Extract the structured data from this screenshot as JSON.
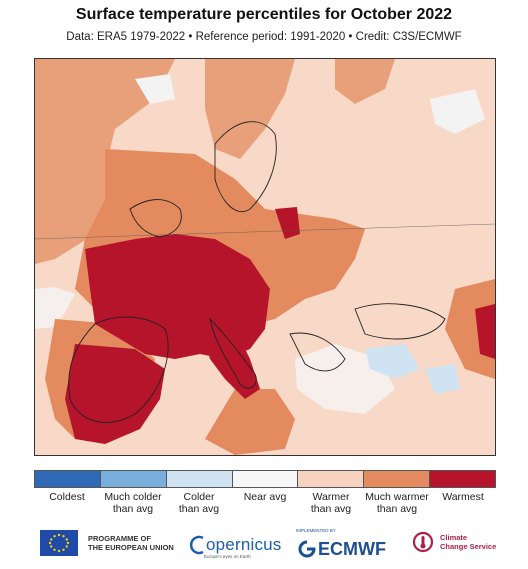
{
  "header": {
    "title": "Surface temperature percentiles for October 2022",
    "subtitle": "Data: ERA5 1979-2022 • Reference period: 1991-2020 • Credit: C3S/ECMWF"
  },
  "colors": {
    "coldest": "#2f6ab6",
    "much_colder": "#7aaedc",
    "colder": "#cfe3f2",
    "near_avg": "#f7f7f7",
    "warmer": "#f7d3bf",
    "much_warmer": "#e38b5f",
    "warmest": "#b5142b"
  },
  "legend": {
    "items": [
      {
        "label": "Coldest",
        "color": "#2f6ab6"
      },
      {
        "label": "Much colder\nthan avg",
        "color": "#7aaedc"
      },
      {
        "label": "Colder\nthan avg",
        "color": "#cfe3f2"
      },
      {
        "label": "Near avg",
        "color": "#f7f7f7"
      },
      {
        "label": "Warmer\nthan avg",
        "color": "#f7d3bf"
      },
      {
        "label": "Much warmer\nthan avg",
        "color": "#e38b5f"
      },
      {
        "label": "Warmest",
        "color": "#b5142b"
      }
    ]
  },
  "logos": {
    "eu_text": "PROGRAMME OF\nTHE EUROPEAN UNION",
    "copernicus": "opernicus",
    "copernicus_sub": "Europe's eyes on Earth",
    "ecmwf_small": "IMPLEMENTED BY",
    "ecmwf": "ECMWF",
    "c3s_text": "Climate\nChange Service"
  }
}
